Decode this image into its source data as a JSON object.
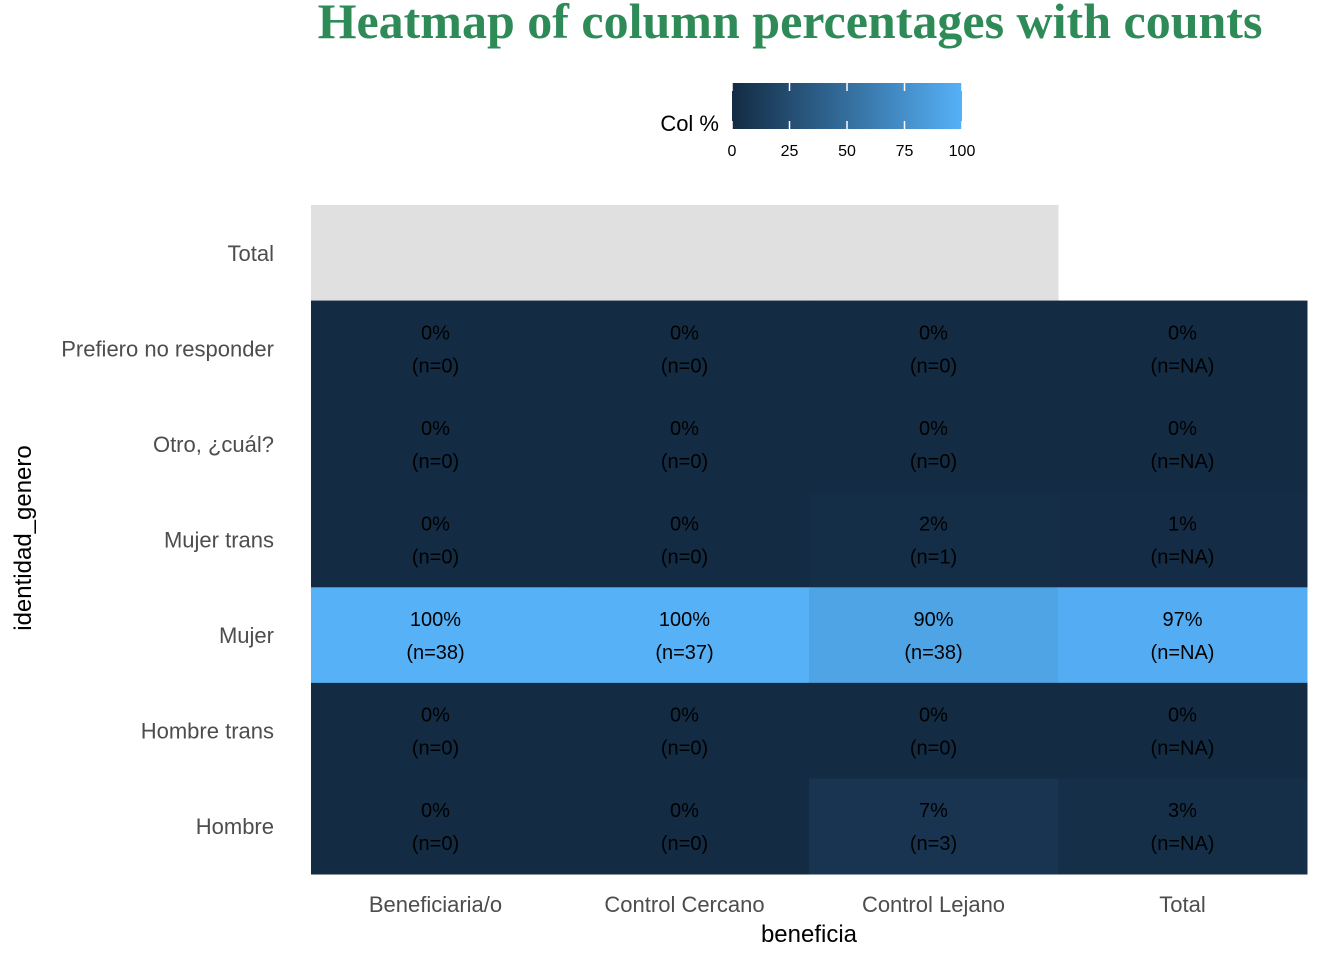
{
  "chart_data": {
    "type": "heatmap",
    "title": "Heatmap of column percentages with counts",
    "xlabel": "beneficia",
    "ylabel": "identidad_genero",
    "x_categories": [
      "Beneficiaria/o",
      "Control Cercano",
      "Control Lejano",
      "Total"
    ],
    "y_categories": [
      "Total",
      "Prefiero no responder",
      "Otro, ¿cuál?",
      "Mujer trans",
      "Mujer",
      "Hombre trans",
      "Hombre"
    ],
    "legend": {
      "title": "Col %",
      "position": "top",
      "range": [
        0,
        100
      ],
      "ticks": [
        "0",
        "25",
        "50",
        "75",
        "100"
      ],
      "color_low": "#132b43",
      "color_high": "#56b1f7"
    },
    "missing_color": "#e0e0e0",
    "grid": false,
    "cells": [
      {
        "x": "Beneficiaria/o",
        "y": "Total",
        "value": null,
        "pct_label": "",
        "n_label": ""
      },
      {
        "x": "Control Cercano",
        "y": "Total",
        "value": null,
        "pct_label": "",
        "n_label": ""
      },
      {
        "x": "Control Lejano",
        "y": "Total",
        "value": null,
        "pct_label": "",
        "n_label": ""
      },
      {
        "x": "Beneficiaria/o",
        "y": "Prefiero no responder",
        "value": 0,
        "pct_label": "0%",
        "n_label": "(n=0)"
      },
      {
        "x": "Control Cercano",
        "y": "Prefiero no responder",
        "value": 0,
        "pct_label": "0%",
        "n_label": "(n=0)"
      },
      {
        "x": "Control Lejano",
        "y": "Prefiero no responder",
        "value": 0,
        "pct_label": "0%",
        "n_label": "(n=0)"
      },
      {
        "x": "Total",
        "y": "Prefiero no responder",
        "value": 0,
        "pct_label": "0%",
        "n_label": "(n=NA)"
      },
      {
        "x": "Beneficiaria/o",
        "y": "Otro, ¿cuál?",
        "value": 0,
        "pct_label": "0%",
        "n_label": "(n=0)"
      },
      {
        "x": "Control Cercano",
        "y": "Otro, ¿cuál?",
        "value": 0,
        "pct_label": "0%",
        "n_label": "(n=0)"
      },
      {
        "x": "Control Lejano",
        "y": "Otro, ¿cuál?",
        "value": 0,
        "pct_label": "0%",
        "n_label": "(n=0)"
      },
      {
        "x": "Total",
        "y": "Otro, ¿cuál?",
        "value": 0,
        "pct_label": "0%",
        "n_label": "(n=NA)"
      },
      {
        "x": "Beneficiaria/o",
        "y": "Mujer trans",
        "value": 0,
        "pct_label": "0%",
        "n_label": "(n=0)"
      },
      {
        "x": "Control Cercano",
        "y": "Mujer trans",
        "value": 0,
        "pct_label": "0%",
        "n_label": "(n=0)"
      },
      {
        "x": "Control Lejano",
        "y": "Mujer trans",
        "value": 2,
        "pct_label": "2%",
        "n_label": "(n=1)"
      },
      {
        "x": "Total",
        "y": "Mujer trans",
        "value": 1,
        "pct_label": "1%",
        "n_label": "(n=NA)"
      },
      {
        "x": "Beneficiaria/o",
        "y": "Mujer",
        "value": 100,
        "pct_label": "100%",
        "n_label": "(n=38)"
      },
      {
        "x": "Control Cercano",
        "y": "Mujer",
        "value": 100,
        "pct_label": "100%",
        "n_label": "(n=37)"
      },
      {
        "x": "Control Lejano",
        "y": "Mujer",
        "value": 90,
        "pct_label": "90%",
        "n_label": "(n=38)"
      },
      {
        "x": "Total",
        "y": "Mujer",
        "value": 97,
        "pct_label": "97%",
        "n_label": "(n=NA)"
      },
      {
        "x": "Beneficiaria/o",
        "y": "Hombre trans",
        "value": 0,
        "pct_label": "0%",
        "n_label": "(n=0)"
      },
      {
        "x": "Control Cercano",
        "y": "Hombre trans",
        "value": 0,
        "pct_label": "0%",
        "n_label": "(n=0)"
      },
      {
        "x": "Control Lejano",
        "y": "Hombre trans",
        "value": 0,
        "pct_label": "0%",
        "n_label": "(n=0)"
      },
      {
        "x": "Total",
        "y": "Hombre trans",
        "value": 0,
        "pct_label": "0%",
        "n_label": "(n=NA)"
      },
      {
        "x": "Beneficiaria/o",
        "y": "Hombre",
        "value": 0,
        "pct_label": "0%",
        "n_label": "(n=0)"
      },
      {
        "x": "Control Cercano",
        "y": "Hombre",
        "value": 0,
        "pct_label": "0%",
        "n_label": "(n=0)"
      },
      {
        "x": "Control Lejano",
        "y": "Hombre",
        "value": 7,
        "pct_label": "7%",
        "n_label": "(n=3)"
      },
      {
        "x": "Total",
        "y": "Hombre",
        "value": 3,
        "pct_label": "3%",
        "n_label": "(n=NA)"
      }
    ]
  }
}
